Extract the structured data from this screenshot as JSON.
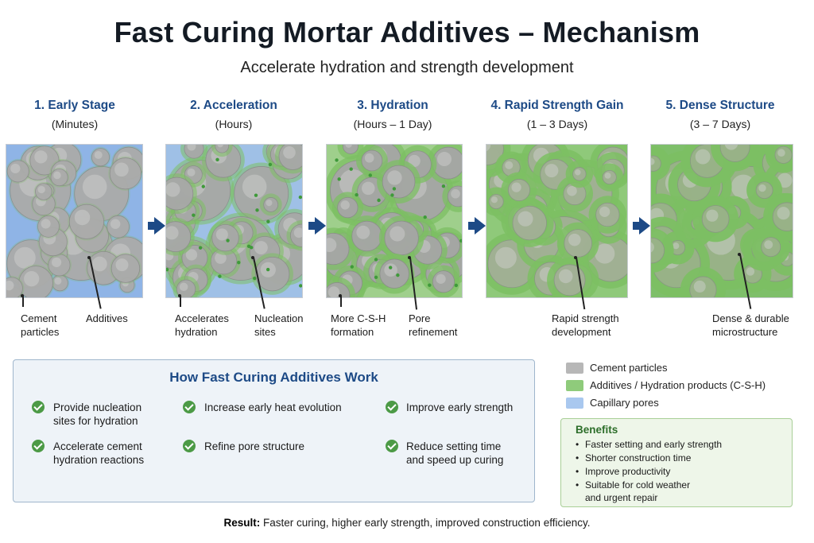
{
  "header": {
    "title": "Fast Curing Mortar Additives – Mechanism",
    "subtitle": "Accelerate hydration and strength development"
  },
  "stages": [
    {
      "title": "1. Early Stage",
      "duration": "(Minutes)",
      "callouts": [
        "Cement\nparticles",
        "Additives"
      ]
    },
    {
      "title": "2. Acceleration",
      "duration": "(Hours)",
      "callouts": [
        "Accelerates\nhydration",
        "Nucleation\nsites"
      ]
    },
    {
      "title": "3. Hydration",
      "duration": "(Hours – 1 Day)",
      "callouts": [
        "More C-S-H\nformation",
        "Pore\nrefinement"
      ]
    },
    {
      "title": "4. Rapid Strength Gain",
      "duration": "(1 – 3 Days)",
      "callouts": [
        "Rapid strength\ndevelopment"
      ]
    },
    {
      "title": "5. Dense Structure",
      "duration": "(3 – 7 Days)",
      "callouts": [
        "Dense & durable\nmicrostructure"
      ]
    }
  ],
  "how": {
    "title": "How Fast Curing Additives Work",
    "items": [
      "Provide nucleation\nsites for hydration",
      "Increase early heat evolution",
      "Improve early strength",
      "Accelerate cement\nhydration reactions",
      "Refine pore structure",
      "Reduce setting time\nand speed up curing"
    ]
  },
  "legend": {
    "items": [
      {
        "label": "Cement particles",
        "color": "#b7b7b7"
      },
      {
        "label": "Additives / Hydration products (C-S-H)",
        "color": "#8fcb7b"
      },
      {
        "label": "Capillary pores",
        "color": "#a9c8ef"
      }
    ]
  },
  "benefits": {
    "title": "Benefits",
    "items": [
      "Faster setting and early strength",
      "Shorter construction time",
      "Improve productivity",
      "Suitable for cold weather\nand urgent repair"
    ]
  },
  "result": {
    "label": "Result:",
    "text": " Faster curing, higher early strength, improved construction efficiency."
  },
  "colors": {
    "accent": "#1d4a86",
    "check": "#4c9a46",
    "pore": "#7fa8d8",
    "particle": "#a9a9a9",
    "product": "#74b862"
  }
}
